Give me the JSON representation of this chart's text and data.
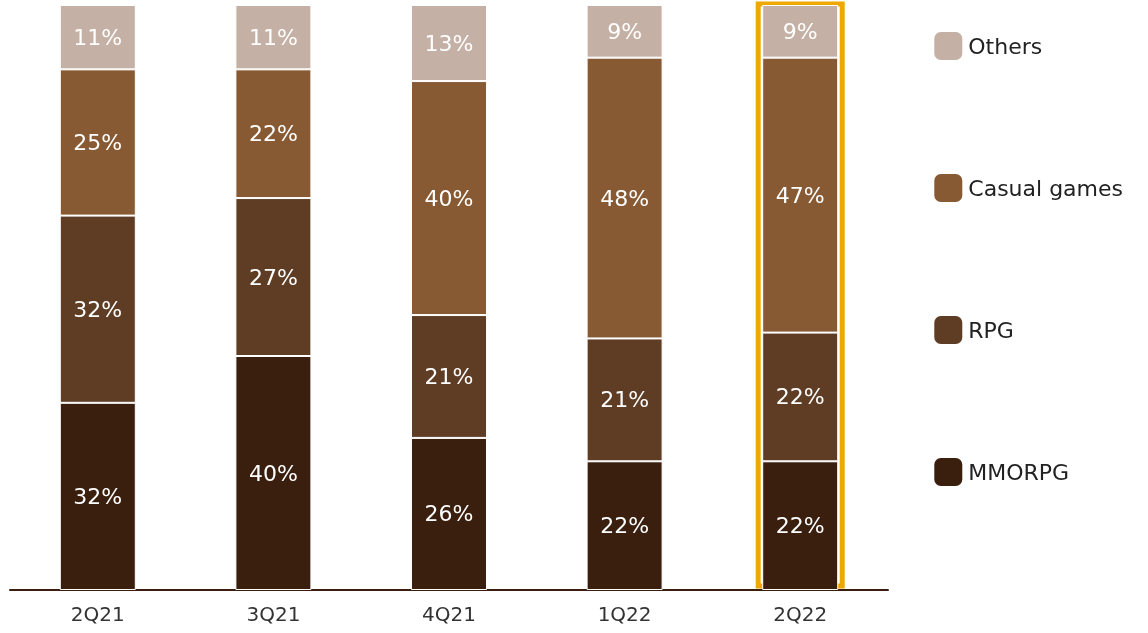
{
  "chart_data": {
    "type": "bar",
    "stacked": true,
    "categories": [
      "2Q21",
      "3Q21",
      "4Q21",
      "1Q22",
      "2Q22"
    ],
    "ylim": [
      0,
      100
    ],
    "tick_labels": "x",
    "legend": "right",
    "series": [
      {
        "name": "MMORPG",
        "color": "#3a1f0f",
        "values": [
          32,
          40,
          26,
          22,
          22
        ],
        "value_labels": [
          "32%",
          "40%",
          "26%",
          "22%",
          "22%"
        ]
      },
      {
        "name": "RPG",
        "color": "#5e3d24",
        "values": [
          32,
          27,
          21,
          21,
          22
        ],
        "value_labels": [
          "32%",
          "27%",
          "21%",
          "21%",
          "22%"
        ]
      },
      {
        "name": "Casual games",
        "color": "#875a34",
        "values": [
          25,
          22,
          40,
          48,
          47
        ],
        "value_labels": [
          "25%",
          "22%",
          "40%",
          "48%",
          "47%"
        ]
      },
      {
        "name": "Others",
        "color": "#c4b0a4",
        "values": [
          11,
          11,
          13,
          9,
          9
        ],
        "value_labels": [
          "11%",
          "11%",
          "13%",
          "9%",
          "9%"
        ]
      }
    ]
  }
}
